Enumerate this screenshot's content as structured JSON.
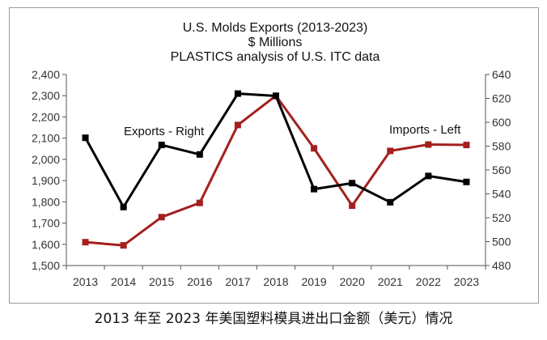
{
  "chart_data": {
    "type": "line",
    "title": "U.S. Molds Exports (2013-2023)",
    "subtitle": "$ Millions",
    "source_note": "PLASTICS analysis of U.S. ITC data",
    "categories": [
      "2013",
      "2014",
      "2015",
      "2016",
      "2017",
      "2018",
      "2019",
      "2020",
      "2021",
      "2022",
      "2023"
    ],
    "left_axis": {
      "ylim": [
        1500,
        2400
      ],
      "ticks": [
        1500,
        1600,
        1700,
        1800,
        1900,
        2000,
        2100,
        2200,
        2300,
        2400
      ],
      "tick_labels": [
        "1,500",
        "1,600",
        "1,700",
        "1,800",
        "1,900",
        "2,000",
        "2,100",
        "2,200",
        "2,300",
        "2,400"
      ]
    },
    "right_axis": {
      "ylim": [
        480,
        640
      ],
      "ticks": [
        480,
        500,
        520,
        540,
        560,
        580,
        600,
        620,
        640
      ],
      "tick_labels": [
        "480",
        "500",
        "520",
        "540",
        "560",
        "580",
        "600",
        "620",
        "640"
      ]
    },
    "grid": false,
    "series": [
      {
        "name": "Imports - Left",
        "axis": "left",
        "color": "#a3201f",
        "values": [
          1610,
          1595,
          1728,
          1795,
          2162,
          2300,
          2052,
          1782,
          2040,
          2070,
          2068
        ]
      },
      {
        "name": "Exports - Right",
        "axis": "right",
        "color": "#000000",
        "values": [
          587,
          529,
          581,
          573,
          624,
          622,
          544,
          549,
          533,
          555,
          550
        ]
      }
    ]
  },
  "caption": "2013 年至 2023 年美国塑料模具进出口金额（美元）情况"
}
